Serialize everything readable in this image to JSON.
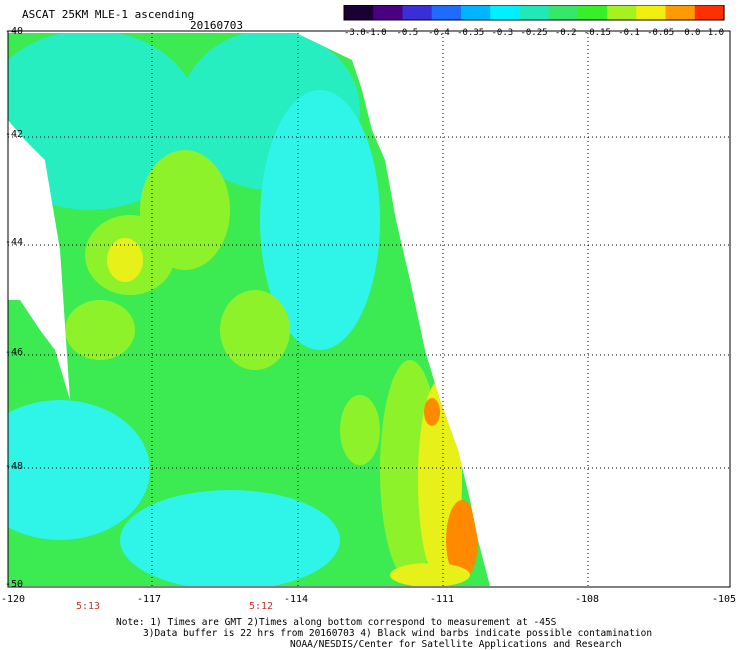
{
  "header": {
    "title": "ASCAT 25KM MLE-1 ascending",
    "date": "20160703"
  },
  "colorbar": {
    "labels": [
      "-3.0",
      "-1.0",
      "-0.5",
      "-0.4",
      "-0.35",
      "-0.3",
      "-0.25",
      "-0.2",
      "-0.15",
      "-0.1",
      "-0.05",
      "0.0",
      "1.0"
    ],
    "colors": [
      "#1a0033",
      "#4b0082",
      "#3a2fd6",
      "#1f6bff",
      "#00b4ff",
      "#00f0ff",
      "#20e8b8",
      "#35e86a",
      "#39ef2a",
      "#a6f21f",
      "#f2ee0e",
      "#ff9a00",
      "#ff3000"
    ]
  },
  "map": {
    "x_ticks": [
      "-120",
      "-117",
      "-114",
      "-111",
      "-108",
      "-105"
    ],
    "y_ticks": [
      "-40",
      "-42",
      "-44",
      "-46",
      "-48",
      "-50"
    ],
    "palette": {
      "cyan": "#2ff4e8",
      "teal": "#26eec0",
      "green": "#3cea52",
      "lime": "#8ef22a",
      "yellow": "#e8f01a",
      "orange": "#ff8a00"
    }
  },
  "times": [
    "5:13",
    "5:12"
  ],
  "notes": [
    "Note: 1) Times are GMT 2)Times along bottom correspond to measurement at -45S",
    "3)Data buffer is 22 hrs from 20160703 4) Black wind barbs indicate possible contamination",
    "NOAA/NESDIS/Center for Satellite Applications and Research"
  ]
}
